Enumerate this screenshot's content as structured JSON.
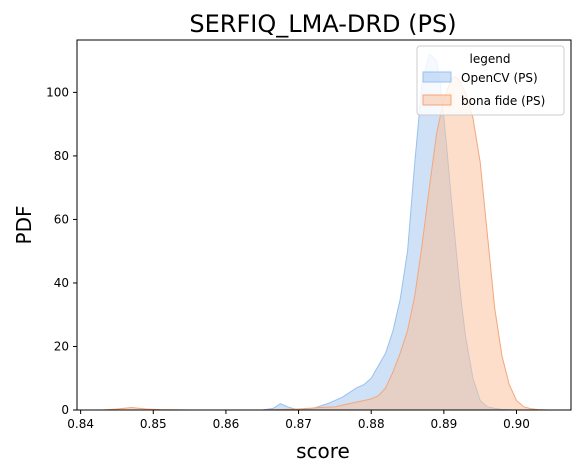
{
  "chart_data": {
    "type": "area",
    "title": "SERFIQ_LMA-DRD (PS)",
    "xlabel": "score",
    "ylabel": "PDF",
    "xlim": [
      0.8395,
      0.9075
    ],
    "ylim": [
      0,
      116.5
    ],
    "xticks": [
      0.84,
      0.85,
      0.86,
      0.87,
      0.88,
      0.89,
      0.9
    ],
    "xtick_labels": [
      "0.84",
      "0.85",
      "0.86",
      "0.87",
      "0.88",
      "0.89",
      "0.90"
    ],
    "yticks": [
      0,
      20,
      40,
      60,
      80,
      100
    ],
    "ytick_labels": [
      "0",
      "20",
      "40",
      "60",
      "80",
      "100"
    ],
    "grid": false,
    "legend": {
      "title": "legend",
      "placement": "top-right",
      "entries": [
        "OpenCV (PS)",
        "bona fide (PS)"
      ]
    },
    "series": [
      {
        "name": "OpenCV (PS)",
        "fill": "#a7c9f0",
        "stroke": "#98c1ec",
        "x": [
          0.865,
          0.8665,
          0.8675,
          0.8685,
          0.8695,
          0.8705,
          0.872,
          0.874,
          0.876,
          0.878,
          0.879,
          0.88,
          0.881,
          0.882,
          0.883,
          0.884,
          0.885,
          0.886,
          0.887,
          0.888,
          0.889,
          0.8895,
          0.89,
          0.8905,
          0.891,
          0.8915,
          0.892,
          0.8925,
          0.893,
          0.894,
          0.895,
          0.896,
          0.897,
          0.898,
          0.899,
          0.9
        ],
        "y": [
          0,
          0.5,
          2,
          1,
          0.3,
          0.2,
          0.5,
          2,
          4,
          7,
          8,
          10,
          14,
          18,
          25,
          35,
          50,
          78,
          103,
          112,
          110,
          103,
          92,
          80,
          67,
          55,
          43,
          32,
          23,
          10,
          3,
          1,
          0.5,
          0.2,
          0.1,
          0
        ]
      },
      {
        "name": "bona fide (PS)",
        "fill": "#f9c29f",
        "stroke": "#f3a77c",
        "x": [
          0.843,
          0.845,
          0.847,
          0.849,
          0.851,
          0.855,
          0.86,
          0.865,
          0.87,
          0.873,
          0.875,
          0.877,
          0.879,
          0.88,
          0.881,
          0.882,
          0.883,
          0.884,
          0.885,
          0.886,
          0.887,
          0.888,
          0.889,
          0.89,
          0.891,
          0.8915,
          0.892,
          0.893,
          0.894,
          0.895,
          0.896,
          0.897,
          0.898,
          0.899,
          0.9,
          0.901,
          0.902,
          0.903,
          0.9045
        ],
        "y": [
          0,
          0.3,
          0.8,
          0.3,
          0.1,
          0,
          0,
          0,
          0.3,
          0.8,
          1,
          2,
          3,
          3.5,
          4.5,
          7,
          12,
          18,
          25,
          36,
          52,
          70,
          87,
          98,
          104,
          105,
          104,
          100,
          92,
          78,
          55,
          32,
          17,
          8,
          3,
          1,
          0.4,
          0.1,
          0
        ]
      }
    ]
  }
}
